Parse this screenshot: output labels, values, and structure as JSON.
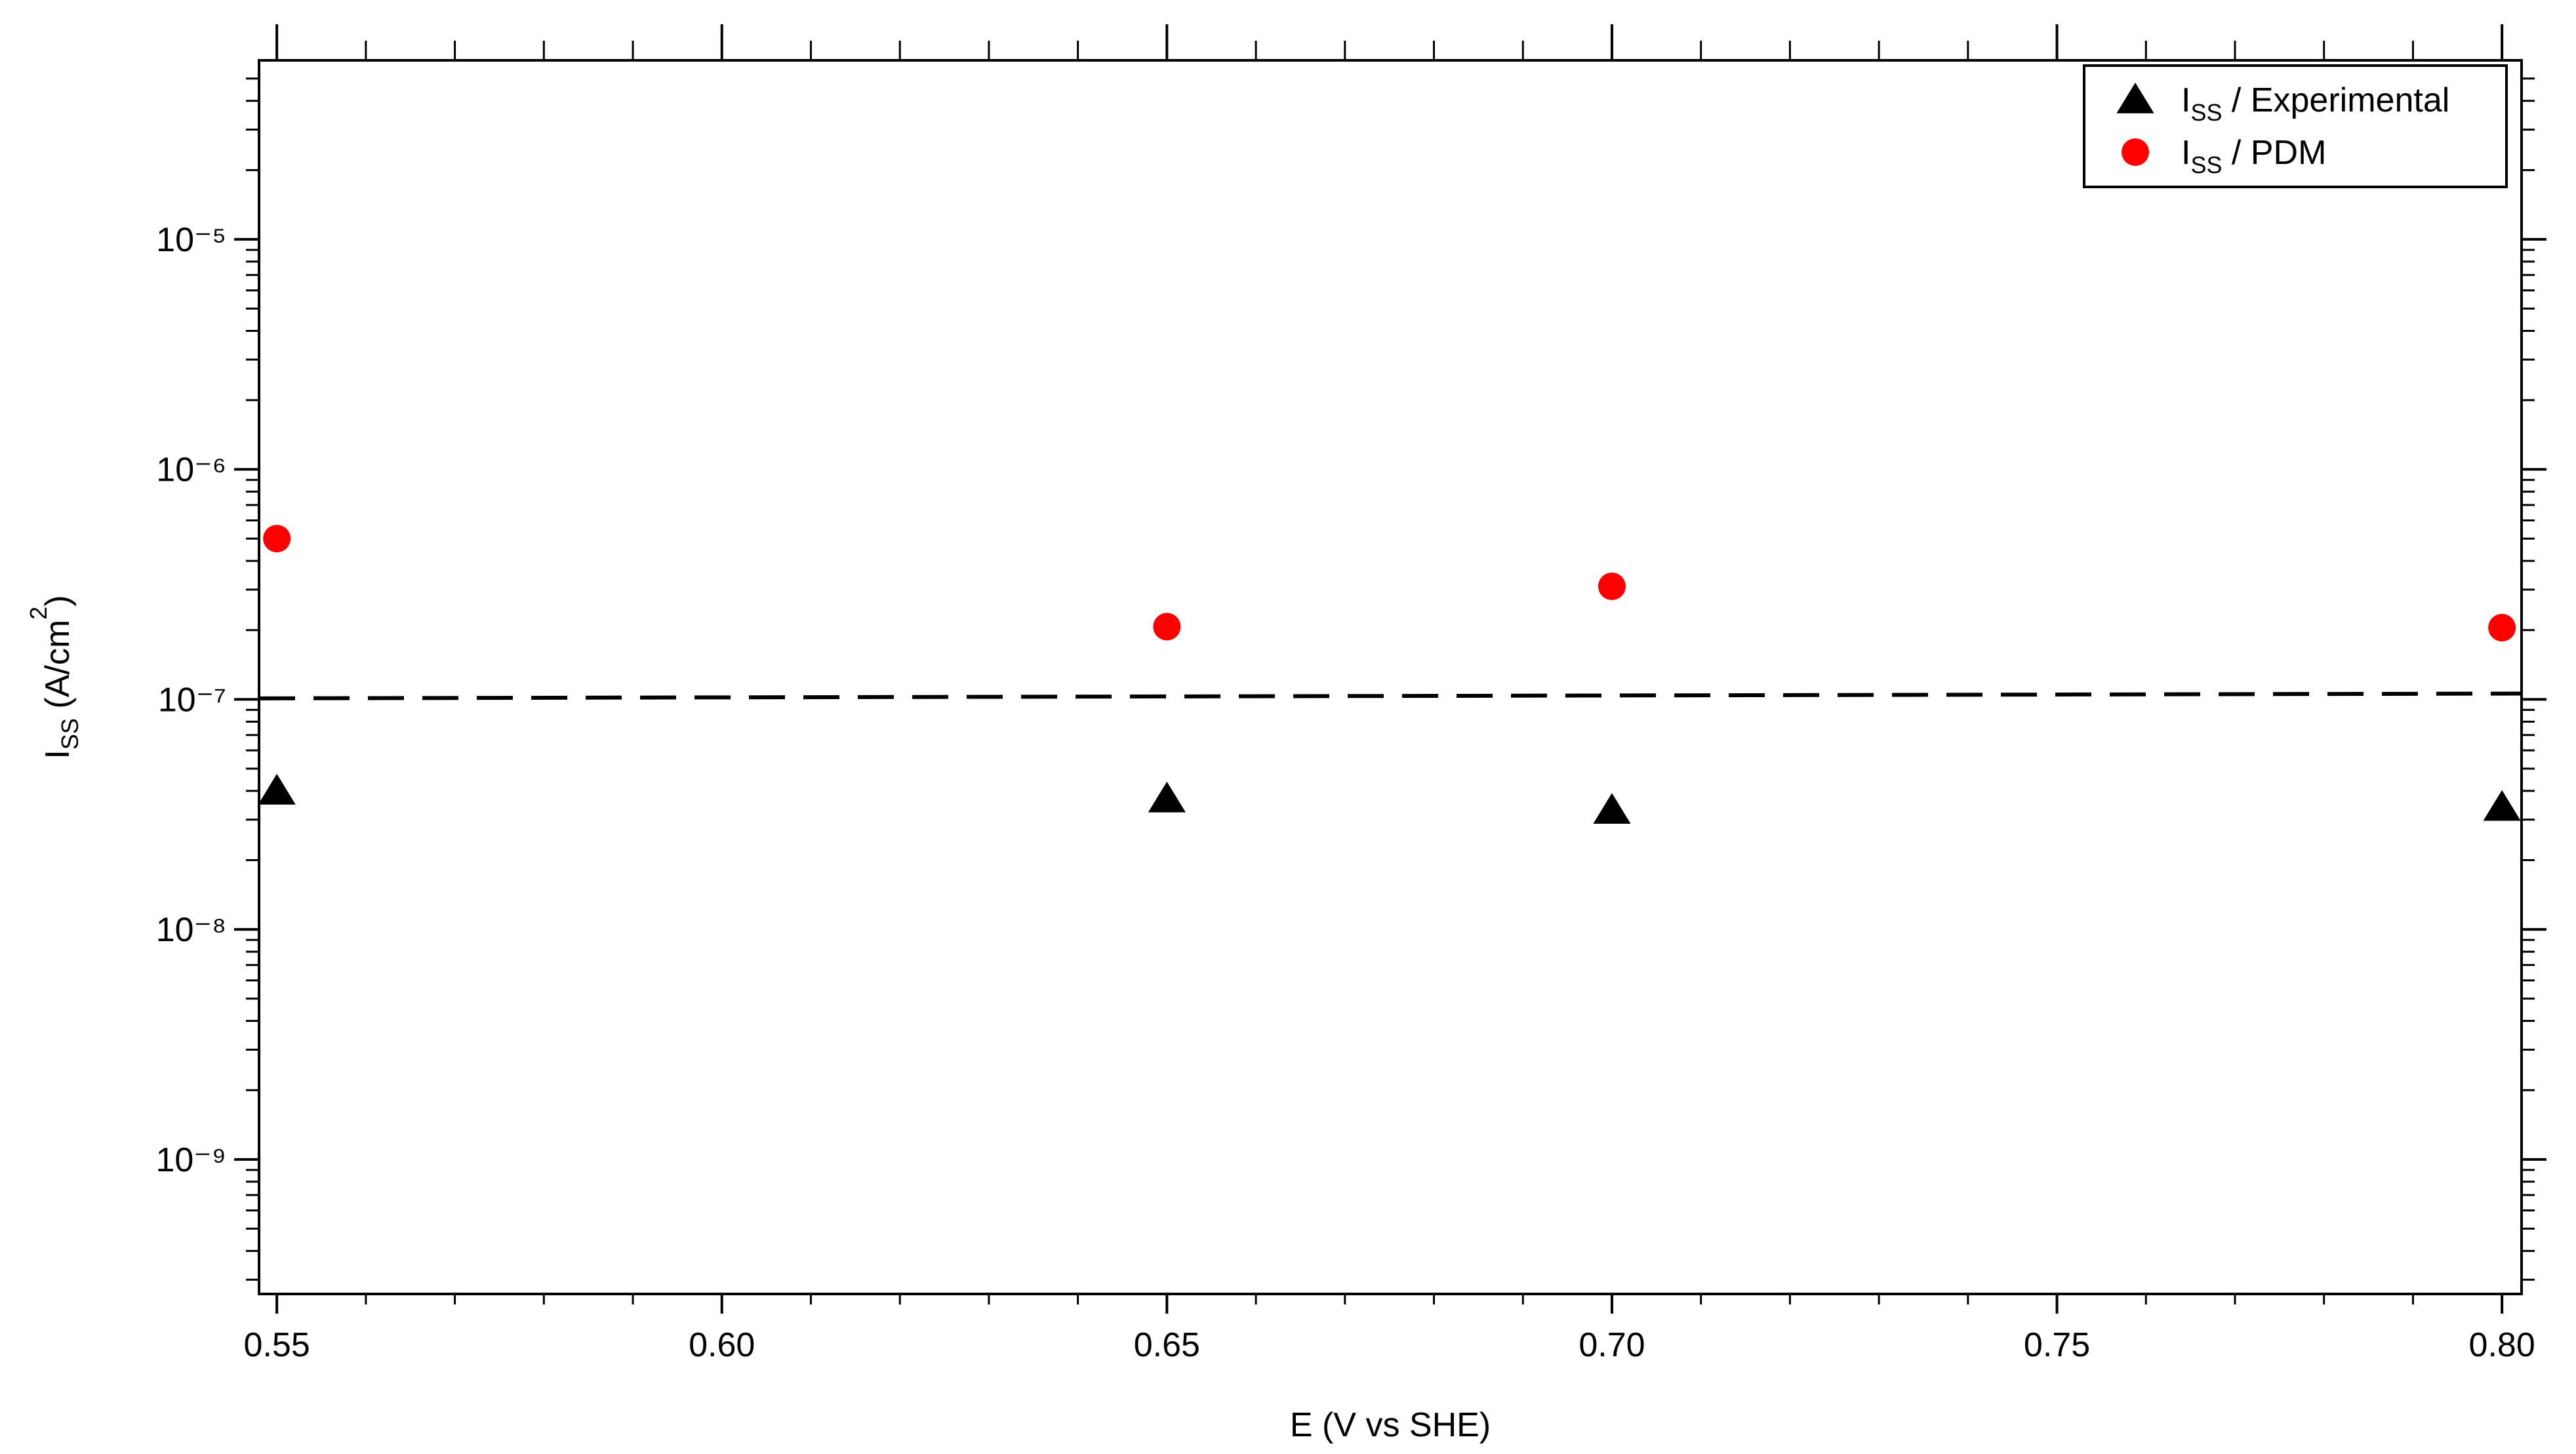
{
  "chart_data": {
    "type": "scatter",
    "xlabel": "E (V vs SHE)",
    "ylabel": [
      "I",
      "SS",
      " (A/cm",
      "2",
      ")"
    ],
    "xlim": [
      0.548,
      0.8022
    ],
    "ylim": [
      6e-05,
      2.6e-10
    ],
    "log_y": true,
    "minor_ticks": true,
    "xticks": [
      0.55,
      {
        "value": 0.6,
        "label": "0.60"
      },
      0.65,
      {
        "value": 0.7,
        "label": "0.70"
      },
      0.75,
      {
        "value": 0.8,
        "label": "0.80"
      }
    ],
    "yticks": [
      {
        "value": 1e-09,
        "label": "10⁻⁹"
      },
      {
        "value": 1e-08,
        "label": "10⁻⁸"
      },
      {
        "value": 1e-07,
        "label": "10⁻⁷"
      },
      {
        "value": 1e-06,
        "label": "10⁻⁶"
      },
      {
        "value": 1e-05,
        "label": "10⁻⁵"
      }
    ],
    "legend": "top-right",
    "series": [
      {
        "name": [
          "I",
          "SS",
          " / Experimental"
        ],
        "marker": "triangle",
        "color": "#000000",
        "x": [
          0.55,
          0.65,
          0.7,
          0.8
        ],
        "values": [
          4e-08,
          3.7e-08,
          3.3e-08,
          3.4e-08
        ]
      },
      {
        "name": [
          "I",
          "SS",
          " / PDM"
        ],
        "marker": "circle",
        "color": "#ff0000",
        "x": [
          0.55,
          0.65,
          0.7,
          0.8
        ],
        "values": [
          5e-07,
          2.07e-07,
          3.1e-07,
          2.05e-07
        ]
      }
    ],
    "reference_line": {
      "x": [
        0.548,
        0.8022
      ],
      "values": [
        1.01e-07,
        1.06e-07
      ],
      "color": "#000000",
      "dashed": true
    }
  }
}
